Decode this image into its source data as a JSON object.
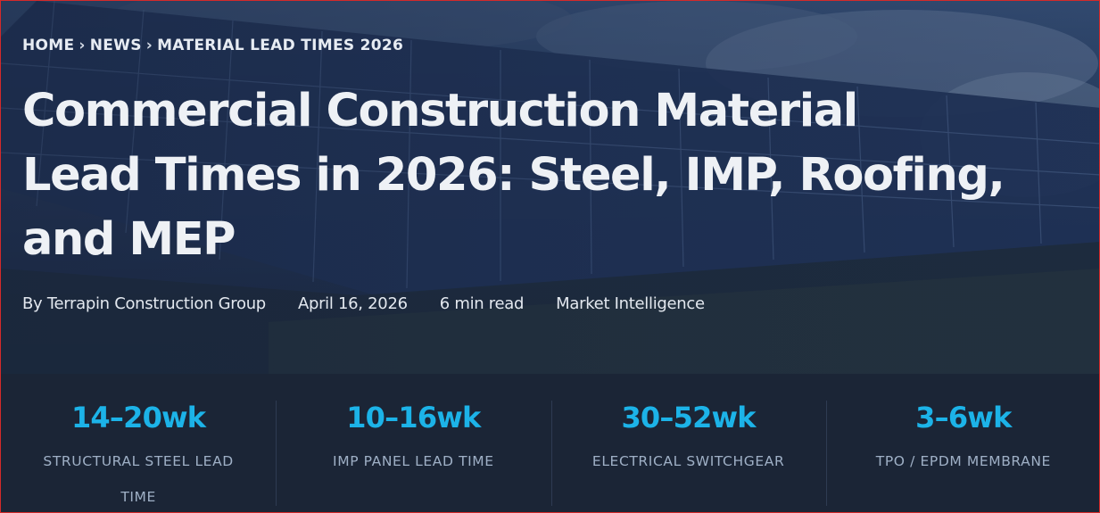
{
  "breadcrumb": {
    "home": "HOME",
    "separator": "›",
    "news": "NEWS",
    "current": "MATERIAL LEAD TIMES 2026"
  },
  "article": {
    "title_line1": "Commercial Construction Material",
    "title_line2": "Lead Times in 2026: Steel, IMP, Roofing,",
    "title_line3": "and MEP",
    "author": "By Terrapin Construction Group",
    "date": "April 16, 2026",
    "read_time": "6 min read",
    "category": "Market Intelligence"
  },
  "stats": [
    {
      "value": "14–20wk",
      "label": "STRUCTURAL STEEL LEAD TIME"
    },
    {
      "value": "10–16wk",
      "label": "IMP PANEL LEAD TIME"
    },
    {
      "value": "30–52wk",
      "label": "ELECTRICAL SWITCHGEAR"
    },
    {
      "value": "3–6wk",
      "label": "TPO / EPDM MEMBRANE"
    }
  ],
  "colors": {
    "accent": "#1cb3e8",
    "stats_background": "#1b2536",
    "hero_overlay": "#1d2c47"
  },
  "hero_image": "solar-panel-array-photo"
}
